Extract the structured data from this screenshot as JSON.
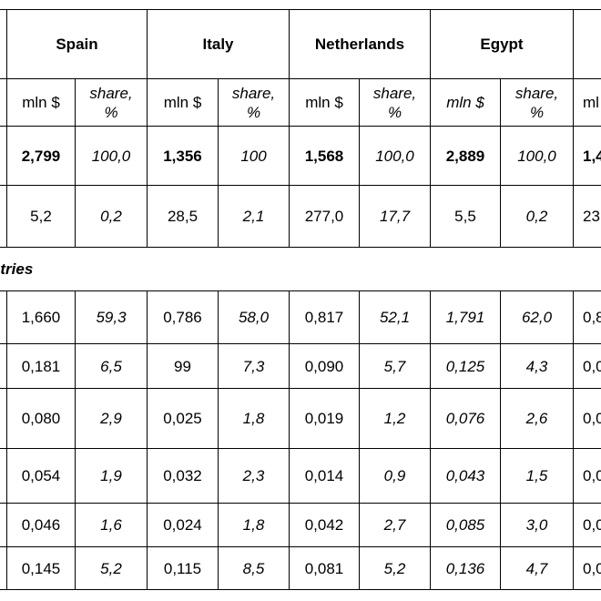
{
  "header": {
    "countries": [
      "Spain",
      "Italy",
      "Netherlands",
      "Egypt"
    ],
    "units": [
      "mln $",
      "share, %",
      "mln $",
      "share, %",
      "mln $",
      "share, %",
      "mln $",
      "share, %"
    ],
    "partial_unit": "ml"
  },
  "rows": [
    [
      "2,799",
      "100,0",
      "1,356",
      "100",
      "1,568",
      "100,0",
      "2,889",
      "100,0"
    ],
    [
      "5,2",
      "0,2",
      "28,5",
      "2,1",
      "277,0",
      "17,7",
      "5,5",
      "0,2"
    ],
    [
      "1,660",
      "59,3",
      "0,786",
      "58,0",
      "0,817",
      "52,1",
      "1,791",
      "62,0"
    ],
    [
      "0,181",
      "6,5",
      "99",
      "7,3",
      "0,090",
      "5,7",
      "0,125",
      "4,3"
    ],
    [
      "0,080",
      "2,9",
      "0,025",
      "1,8",
      "0,019",
      "1,2",
      "0,076",
      "2,6"
    ],
    [
      "0,054",
      "1,9",
      "0,032",
      "2,3",
      "0,014",
      "0,9",
      "0,043",
      "1,5"
    ],
    [
      "0,046",
      "1,6",
      "0,024",
      "1,8",
      "0,042",
      "2,7",
      "0,085",
      "3,0"
    ],
    [
      "0,145",
      "5,2",
      "0,115",
      "8,5",
      "0,081",
      "5,2",
      "0,136",
      "4,7"
    ]
  ],
  "partial": [
    "1,4",
    "23",
    "0,8",
    "0,0",
    "0,0",
    "0,0",
    "0,0",
    "0,0"
  ],
  "section_label": "ntries"
}
